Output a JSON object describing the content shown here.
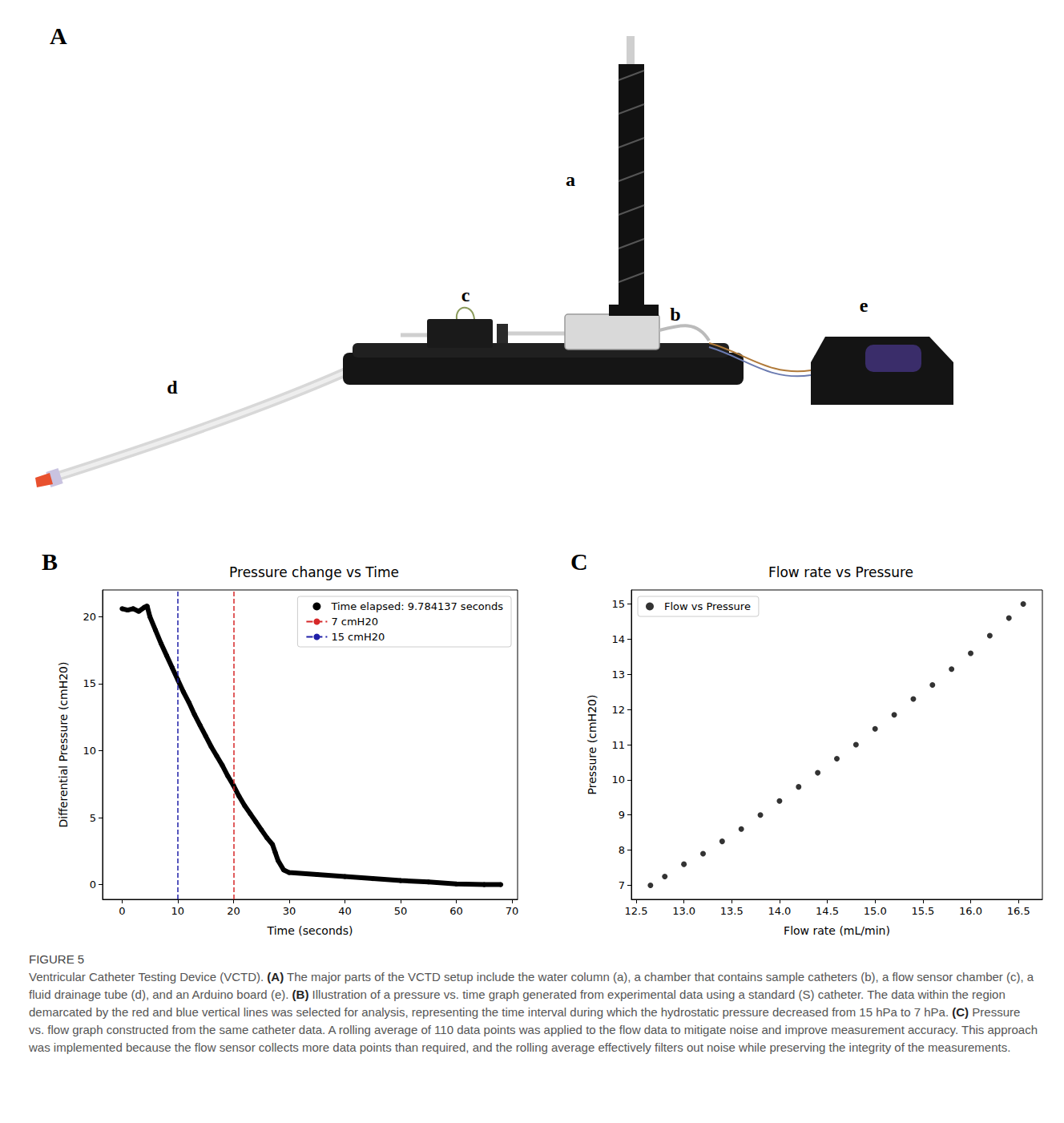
{
  "panel_letters": [
    "A",
    "B",
    "C"
  ],
  "photo_labels": [
    "a",
    "b",
    "c",
    "d",
    "e"
  ],
  "chart_data": [
    {
      "type": "line",
      "title": "Pressure change vs Time",
      "x_label": "Time (seconds)",
      "y_label": "Differential Pressure (cmH20)",
      "xlim": [
        -3.5,
        71
      ],
      "xticks": [
        0,
        10,
        20,
        30,
        40,
        50,
        60,
        70
      ],
      "ylim": [
        -1.1,
        22
      ],
      "yticks": [
        0,
        5,
        10,
        15,
        20
      ],
      "grid": false,
      "legend": "upper right",
      "series": [
        {
          "name": "Time elapsed: 9.784137 seconds",
          "type": "line",
          "marker": "circle",
          "color": "#000000",
          "x": [
            0,
            1,
            2,
            3,
            4,
            4.5,
            5,
            6,
            7,
            8,
            9,
            10,
            11,
            12,
            13,
            14,
            15,
            16,
            17,
            18,
            19,
            20,
            21,
            22,
            23,
            24,
            25,
            26,
            27,
            27.5,
            28,
            29,
            30,
            35,
            40,
            45,
            50,
            55,
            60,
            65,
            68
          ],
          "values": [
            20.6,
            20.5,
            20.6,
            20.4,
            20.7,
            20.8,
            20.0,
            19.0,
            18.0,
            17.1,
            16.2,
            15.3,
            14.4,
            13.6,
            12.7,
            11.9,
            11.1,
            10.3,
            9.6,
            8.9,
            8.1,
            7.4,
            6.6,
            5.9,
            5.3,
            4.7,
            4.1,
            3.5,
            3.0,
            2.4,
            1.8,
            1.1,
            0.9,
            0.75,
            0.6,
            0.45,
            0.3,
            0.2,
            0.05,
            0,
            0
          ]
        },
        {
          "name": "7 cmH20",
          "type": "vline",
          "x": 20,
          "color": "#d62728",
          "line_style": "dashed"
        },
        {
          "name": "15 cmH20",
          "type": "vline",
          "x": 10,
          "color": "#1f1fa8",
          "line_style": "dashed"
        }
      ]
    },
    {
      "type": "scatter",
      "title": "Flow rate vs Pressure",
      "x_label": "Flow rate (mL/min)",
      "y_label": "Pressure (cmH20)",
      "xlim": [
        12.45,
        16.75
      ],
      "xticks": [
        12.5,
        {
          "value": 13,
          "label": "13.0"
        },
        13.5,
        {
          "value": 14,
          "label": "14.0"
        },
        14.5,
        {
          "value": 15,
          "label": "15.0"
        },
        15.5,
        {
          "value": 16,
          "label": "16.0"
        },
        16.5
      ],
      "ylim": [
        6.6,
        15.4
      ],
      "yticks": [
        7,
        8,
        9,
        10,
        11,
        12,
        13,
        14,
        15
      ],
      "grid": false,
      "legend": "upper left",
      "series": [
        {
          "name": "Flow vs Pressure",
          "type": "scatter",
          "marker": "circle",
          "color": "#000000",
          "x": [
            12.65,
            12.8,
            13.0,
            13.2,
            13.4,
            13.6,
            13.8,
            14.0,
            14.2,
            14.4,
            14.6,
            14.8,
            15.0,
            15.2,
            15.4,
            15.6,
            15.8,
            16.0,
            16.2,
            16.4,
            16.55
          ],
          "values": [
            7.0,
            7.25,
            7.6,
            7.9,
            8.25,
            8.6,
            9.0,
            9.4,
            9.8,
            10.2,
            10.6,
            11.0,
            11.45,
            11.85,
            12.3,
            12.7,
            13.15,
            13.6,
            14.1,
            14.6,
            15.0
          ]
        }
      ]
    }
  ],
  "caption": {
    "label": "FIGURE 5",
    "parts": [
      {
        "text": "Ventricular Catheter Testing Device (VCTD). ",
        "bold": false
      },
      {
        "text": "(A)",
        "bold": true
      },
      {
        "text": " The major parts of the VCTD setup include the water column (a), a chamber that contains sample catheters (b), a flow sensor chamber (c), a fluid drainage tube (d), and an Arduino board (e). ",
        "bold": false
      },
      {
        "text": "(B)",
        "bold": true
      },
      {
        "text": " Illustration of a pressure vs. time graph generated from experimental data using a standard (S) catheter. The data within the region demarcated by the red and blue vertical lines was selected for analysis, representing the time interval during which the hydrostatic pressure decreased from 15 hPa to 7 hPa. ",
        "bold": false
      },
      {
        "text": "(C)",
        "bold": true
      },
      {
        "text": " Pressure vs. flow graph constructed from the same catheter data. A rolling average of 110 data points was applied to the flow data to mitigate noise and improve measurement accuracy. This approach was implemented because the flow sensor collects more data points than required, and the rolling average effectively filters out noise while preserving the integrity of the measurements.",
        "bold": false
      }
    ]
  }
}
